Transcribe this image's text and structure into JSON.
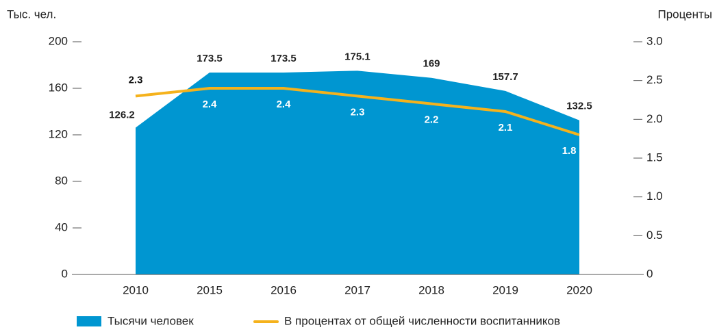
{
  "chart_data": {
    "type": "area",
    "y_label": "Тыс. чел.",
    "y2_label": "Проценты",
    "categories": [
      "2010",
      "2015",
      "2016",
      "2017",
      "2018",
      "2019",
      "2020"
    ],
    "series": [
      {
        "name": "Тысячи человек",
        "type": "area",
        "color": "#0096d1",
        "values": [
          126.2,
          173.5,
          173.5,
          175.1,
          169.0,
          157.7,
          132.5
        ]
      },
      {
        "name": "В процентах от общей численности воспитанников",
        "type": "line",
        "axis": "y2",
        "color": "#f5b21c",
        "values": [
          2.3,
          2.4,
          2.4,
          2.3,
          2.2,
          2.1,
          1.8
        ]
      }
    ],
    "ylim": [
      0,
      200
    ],
    "yticks": [
      0,
      40,
      80,
      120,
      160,
      200
    ],
    "y2lim": [
      0,
      3
    ],
    "y2ticks": [
      0,
      {
        "value": 0.5,
        "label": "0.5"
      },
      {
        "value": 1,
        "label": "1.0"
      },
      {
        "value": 1.5,
        "label": "1.5"
      },
      {
        "value": 2,
        "label": "2.0"
      },
      {
        "value": 2.5,
        "label": "2.5"
      },
      {
        "value": 3,
        "label": "3.0"
      }
    ],
    "legend": "bottom"
  }
}
